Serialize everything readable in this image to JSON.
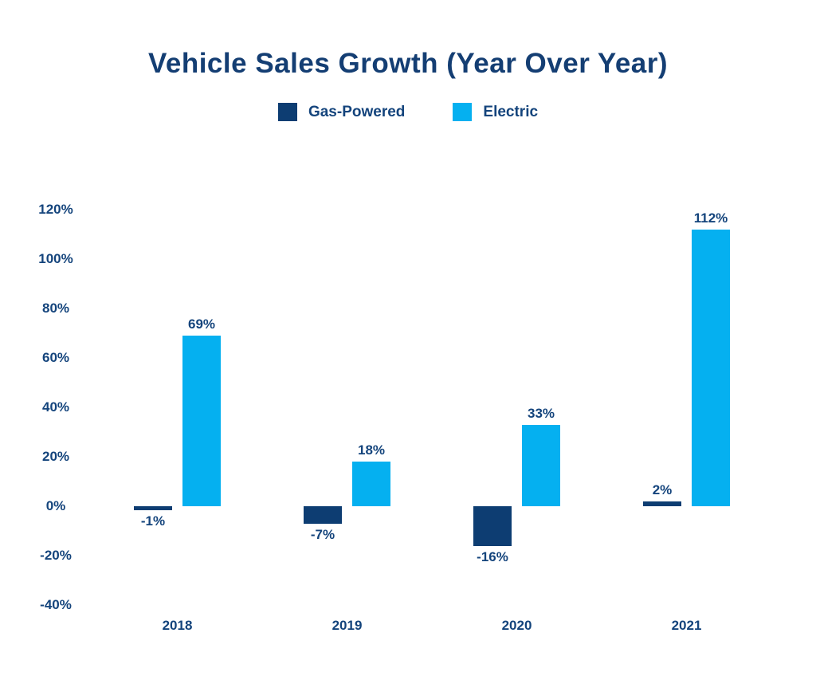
{
  "title": "Vehicle Sales Growth (Year Over Year)",
  "legend": [
    {
      "label": "Gas-Powered",
      "color": "#0D3D72"
    },
    {
      "label": "Electric",
      "color": "#05B0F0"
    }
  ],
  "chart_data": {
    "type": "bar",
    "title": "Vehicle Sales Growth (Year Over Year)",
    "categories": [
      "2018",
      "2019",
      "2020",
      "2021"
    ],
    "series": [
      {
        "name": "Gas-Powered",
        "color": "#0D3D72",
        "values": [
          -1,
          -7,
          -16,
          2
        ],
        "data_labels": [
          "-1%",
          "-7%",
          "-16%",
          "2%"
        ]
      },
      {
        "name": "Electric",
        "color": "#05B0F0",
        "values": [
          69,
          18,
          33,
          112
        ],
        "data_labels": [
          "69%",
          "18%",
          "33%",
          "112%"
        ]
      }
    ],
    "ylabel": "",
    "xlabel": "",
    "ylim": [
      -40,
      120
    ],
    "yticks": [
      120,
      100,
      80,
      60,
      40,
      20,
      0,
      -20,
      -40
    ],
    "ytick_labels": [
      "120%",
      "100%",
      "80%",
      "60%",
      "40%",
      "20%",
      "0%",
      "-20%",
      "-40%"
    ],
    "grid": false,
    "axis_lines": false,
    "legend_position": "top",
    "text_color": "#14447C"
  }
}
